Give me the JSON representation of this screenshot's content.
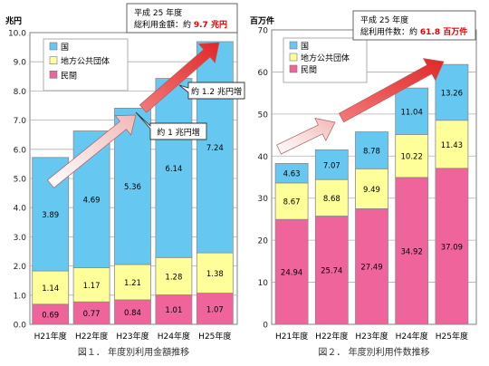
{
  "colors": {
    "kuni": "#66c8f0",
    "chiho": "#ffff99",
    "minkan": "#f0649c",
    "arrow_fill": "#ee4444",
    "callout_red": "#ee0000",
    "axis": "#808080",
    "grid": "#b0b0b0"
  },
  "chart_data": [
    {
      "type": "bar",
      "stacked": true,
      "unit_label": "兆円",
      "caption": "図１． 年度別利用金額推移",
      "categories": [
        "H21年度",
        "H22年度",
        "H23年度",
        "H24年度",
        "H25年度"
      ],
      "ylim": [
        0,
        10
      ],
      "yticks": [
        "0.0",
        "1.0",
        "2.0",
        "3.0",
        "4.0",
        "5.0",
        "6.0",
        "7.0",
        "8.0",
        "9.0",
        "10.0"
      ],
      "series": [
        {
          "name": "民間",
          "color_key": "minkan",
          "values": [
            0.69,
            0.77,
            0.84,
            1.01,
            1.07
          ]
        },
        {
          "name": "地方公共団体",
          "color_key": "chiho",
          "values": [
            1.14,
            1.17,
            1.21,
            1.28,
            1.38
          ]
        },
        {
          "name": "国",
          "color_key": "kuni",
          "values": [
            3.89,
            4.69,
            5.36,
            6.14,
            7.24
          ]
        }
      ],
      "legend": {
        "placement": "top-left",
        "items": [
          "国",
          "地方公共団体",
          "民間"
        ]
      },
      "callout": {
        "line1": "平成 25 年度",
        "line2_prefix": "総利用金額：約 ",
        "line2_value": "9.7 兆円"
      },
      "annotations": [
        "約 1.2 兆円増",
        "約 1 兆円増"
      ]
    },
    {
      "type": "bar",
      "stacked": true,
      "unit_label": "百万件",
      "caption": "図２． 年度別利用件数推移",
      "categories": [
        "H21年度",
        "H22年度",
        "H23年度",
        "H24年度",
        "H25年度"
      ],
      "ylim": [
        0,
        70
      ],
      "yticks": [
        "0",
        "10",
        "20",
        "30",
        "40",
        "50",
        "60",
        "70"
      ],
      "series": [
        {
          "name": "民間",
          "color_key": "minkan",
          "values": [
            24.94,
            25.74,
            27.49,
            34.92,
            37.09
          ]
        },
        {
          "name": "地方公共団体",
          "color_key": "chiho",
          "values": [
            8.67,
            8.68,
            9.49,
            10.22,
            11.43
          ]
        },
        {
          "name": "国",
          "color_key": "kuni",
          "values": [
            4.63,
            7.07,
            8.78,
            11.04,
            13.26
          ]
        }
      ],
      "legend": {
        "placement": "top-left",
        "items": [
          "国",
          "地方公共団体",
          "民間"
        ]
      },
      "callout": {
        "line1": "平成 25 年度",
        "line2_prefix": "総利用件数：約 ",
        "line2_value": "61.8 百万件"
      },
      "annotations": []
    }
  ]
}
